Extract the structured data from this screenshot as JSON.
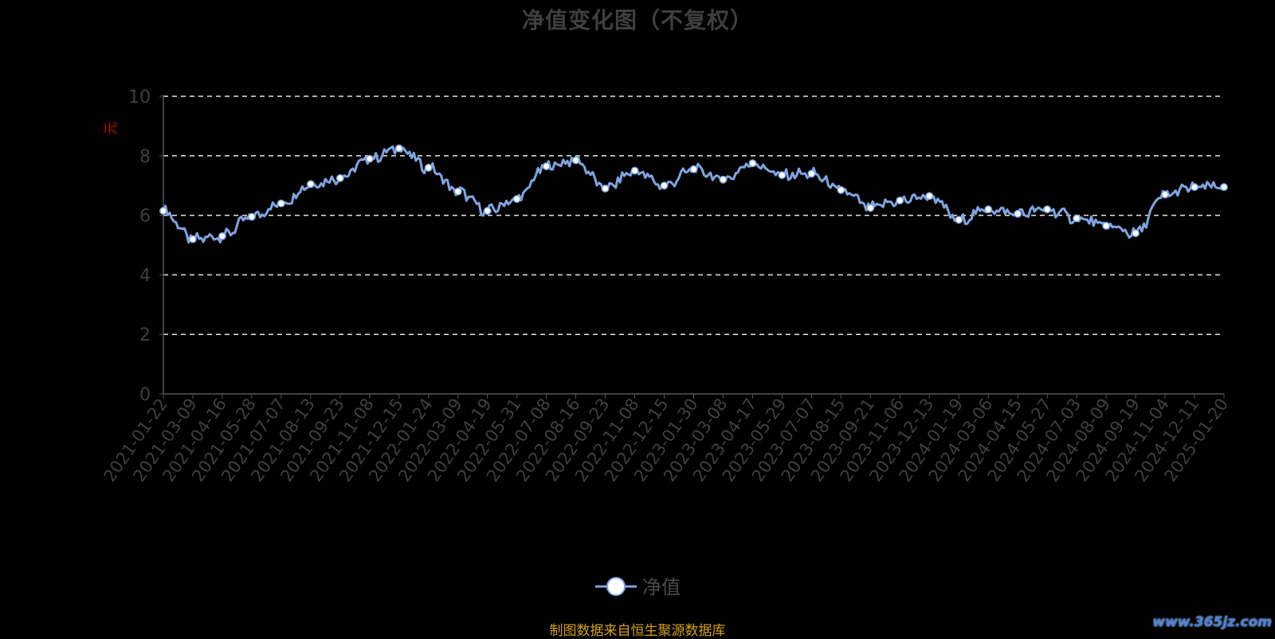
{
  "title": "净值变化图（不复权）",
  "source_note": "制图数据来自恒生聚源数据库",
  "watermark": "www.365jz.com",
  "colors": {
    "line": "#7fa5e0",
    "marker_fill": "#ffffff",
    "axis": "#555555",
    "tick_text": "#3f3f3f",
    "unit": "#cc0000",
    "grid": "#e6e6e6",
    "legend_text": "#4a4a4a"
  },
  "chart_data": {
    "type": "line",
    "title": "净值变化图（不复权）",
    "ylabel": "元",
    "xlabel": "",
    "ylim": [
      0,
      10
    ],
    "yticks": [
      0,
      2,
      4,
      6,
      8,
      10
    ],
    "grid": true,
    "grid_style": "dashed-horizontal",
    "legend_position": "bottom-center",
    "x_tick_labels": [
      "2021-01-22",
      "2021-03-09",
      "2021-04-16",
      "2021-05-28",
      "2021-07-07",
      "2021-08-13",
      "2021-09-23",
      "2021-11-08",
      "2021-12-15",
      "2022-01-24",
      "2022-03-09",
      "2022-04-19",
      "2022-05-31",
      "2022-07-08",
      "2022-08-16",
      "2022-09-23",
      "2022-11-08",
      "2022-12-15",
      "2023-01-30",
      "2023-03-08",
      "2023-04-17",
      "2023-05-29",
      "2023-07-07",
      "2023-08-15",
      "2023-09-21",
      "2023-11-06",
      "2023-12-13",
      "2024-01-19",
      "2024-03-06",
      "2024-04-15",
      "2024-05-27",
      "2024-07-03",
      "2024-08-09",
      "2024-09-19",
      "2024-11-04",
      "2024-12-11",
      "2025-01-20"
    ],
    "series": [
      {
        "name": "净值",
        "values": [
          6.15,
          5.2,
          5.3,
          5.95,
          6.4,
          7.05,
          7.25,
          7.9,
          8.25,
          7.6,
          6.8,
          6.15,
          6.55,
          7.65,
          7.85,
          6.9,
          7.5,
          7.0,
          7.55,
          7.2,
          7.75,
          7.35,
          7.4,
          6.85,
          6.25,
          6.5,
          6.65,
          5.85,
          6.2,
          6.05,
          6.2,
          5.9,
          5.65,
          5.4,
          6.7,
          6.95,
          6.95
        ]
      }
    ]
  }
}
